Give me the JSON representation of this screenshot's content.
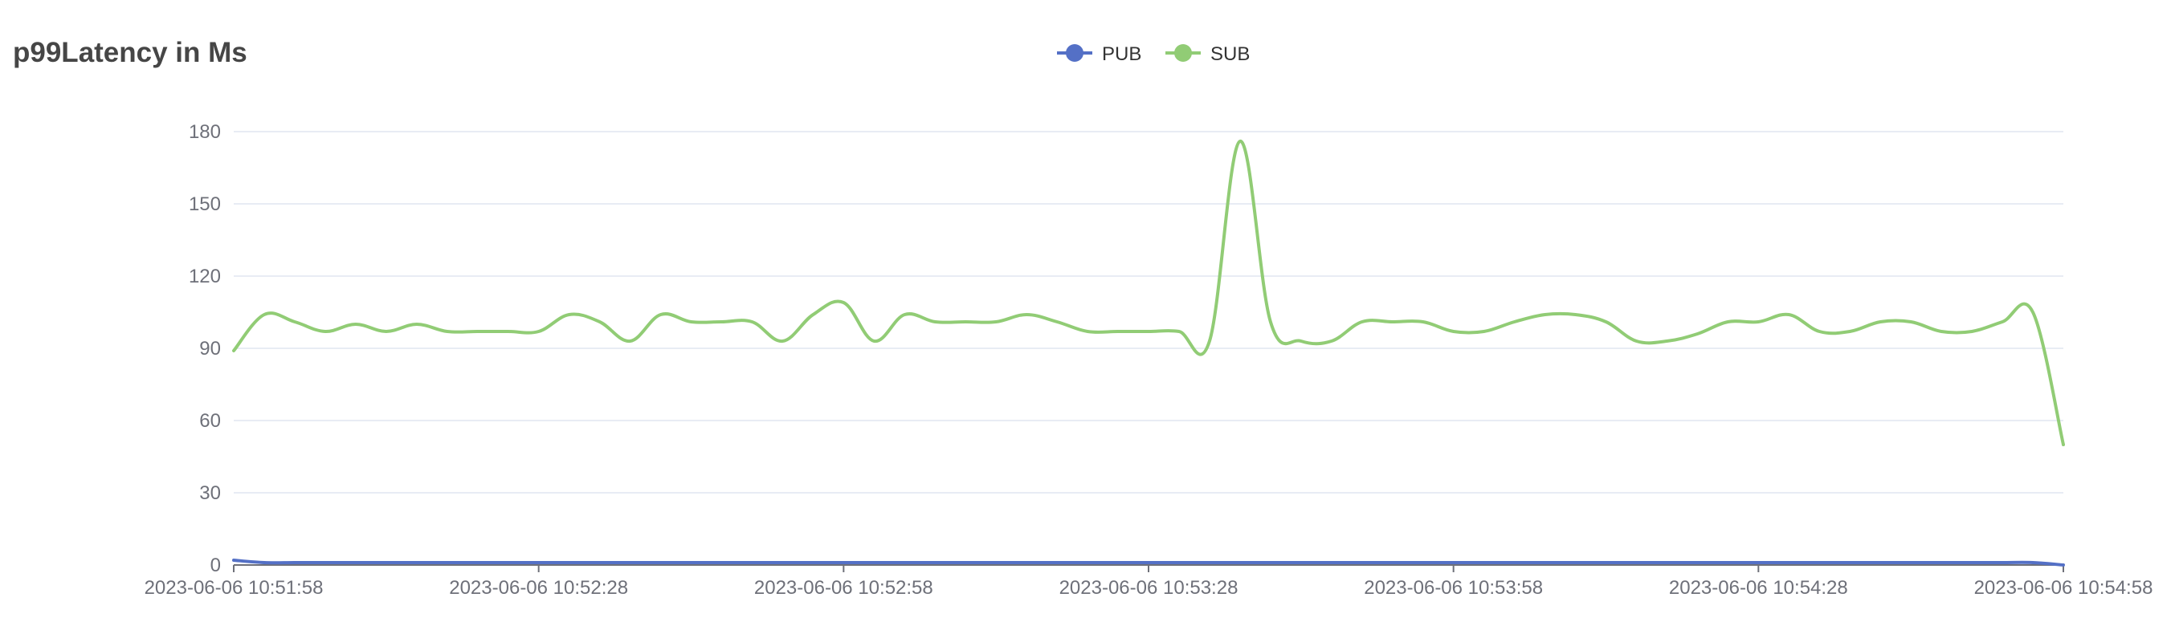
{
  "chart_data": {
    "type": "line",
    "title": "p99Latency in Ms",
    "xlabel": "",
    "ylabel": "",
    "ylim": [
      0,
      180
    ],
    "y_ticks": [
      0,
      30,
      60,
      90,
      120,
      150,
      180
    ],
    "x_range": [
      0,
      180
    ],
    "x_ticks": [
      0,
      30,
      60,
      90,
      120,
      150,
      180
    ],
    "x_tick_labels": [
      "2023-06-06 10:51:58",
      "2023-06-06 10:52:28",
      "2023-06-06 10:52:58",
      "2023-06-06 10:53:28",
      "2023-06-06 10:53:58",
      "2023-06-06 10:54:28",
      "2023-06-06 10:54:58"
    ],
    "grid": true,
    "legend": "top-center",
    "series": [
      {
        "name": "PUB",
        "color": "#5470c6",
        "x": [
          0,
          3,
          6,
          9,
          12,
          15,
          18,
          21,
          24,
          27,
          30,
          33,
          36,
          39,
          42,
          45,
          48,
          51,
          54,
          57,
          60,
          63,
          66,
          69,
          72,
          75,
          78,
          81,
          84,
          87,
          90,
          93,
          96,
          99,
          102,
          105,
          108,
          111,
          114,
          117,
          120,
          123,
          126,
          129,
          132,
          135,
          138,
          141,
          144,
          147,
          150,
          153,
          156,
          159,
          162,
          165,
          168,
          171,
          174,
          177,
          180
        ],
        "values": [
          2,
          1,
          1,
          1,
          1,
          1,
          1,
          1,
          1,
          1,
          1,
          1,
          1,
          1,
          1,
          1,
          1,
          1,
          1,
          1,
          1,
          1,
          1,
          1,
          1,
          1,
          1,
          1,
          1,
          1,
          1,
          1,
          1,
          1,
          1,
          1,
          1,
          1,
          1,
          1,
          1,
          1,
          1,
          1,
          1,
          1,
          1,
          1,
          1,
          1,
          1,
          1,
          1,
          1,
          1,
          1,
          1,
          1,
          1,
          1,
          0
        ]
      },
      {
        "name": "SUB",
        "color": "#91cc75",
        "x": [
          0,
          3,
          6,
          9,
          12,
          15,
          18,
          21,
          24,
          27,
          30,
          33,
          36,
          39,
          42,
          45,
          48,
          51,
          54,
          57,
          60,
          63,
          66,
          69,
          72,
          75,
          78,
          81,
          84,
          87,
          90,
          93,
          96,
          99,
          102,
          105,
          108,
          111,
          114,
          117,
          120,
          123,
          126,
          129,
          132,
          135,
          138,
          141,
          144,
          147,
          150,
          153,
          156,
          159,
          162,
          165,
          168,
          171,
          174,
          177,
          180
        ],
        "values": [
          89,
          104,
          101,
          97,
          100,
          97,
          100,
          97,
          97,
          97,
          97,
          104,
          101,
          93,
          104,
          101,
          101,
          101,
          93,
          104,
          109,
          93,
          104,
          101,
          101,
          101,
          104,
          101,
          97,
          97,
          97,
          97,
          93,
          176,
          101,
          93,
          93,
          101,
          101,
          101,
          97,
          97,
          101,
          104,
          104,
          101,
          93,
          93,
          96,
          101,
          101,
          104,
          97,
          97,
          101,
          101,
          97,
          97,
          101,
          105,
          50
        ]
      }
    ]
  }
}
